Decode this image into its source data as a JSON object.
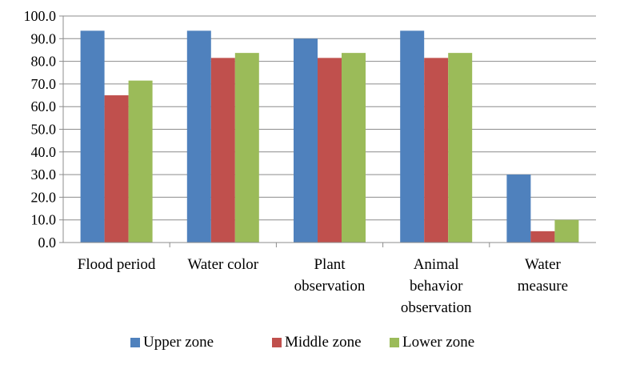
{
  "chart_data": {
    "type": "bar",
    "categories": [
      [
        "Flood period"
      ],
      [
        "Water color"
      ],
      [
        "Plant",
        "observation"
      ],
      [
        "Animal",
        "behavior",
        "observation"
      ],
      [
        "Water",
        "measure"
      ]
    ],
    "series": [
      {
        "name": "Upper zone",
        "color": "#4f81bd",
        "values": [
          93.5,
          93.5,
          90.0,
          93.5,
          30.0
        ]
      },
      {
        "name": "Middle zone",
        "color": "#c0504d",
        "values": [
          65.0,
          81.5,
          81.5,
          81.5,
          5.0
        ]
      },
      {
        "name": "Lower zone",
        "color": "#9bbb59",
        "values": [
          71.5,
          83.7,
          83.7,
          83.7,
          10.0
        ]
      }
    ],
    "ylim": [
      0,
      100
    ],
    "ytick_step": 10,
    "ytick_labels": [
      "0.0",
      "10.0",
      "20.0",
      "30.0",
      "40.0",
      "50.0",
      "60.0",
      "70.0",
      "80.0",
      "90.0",
      "100.0"
    ],
    "grid": true,
    "legend_position": "bottom"
  }
}
